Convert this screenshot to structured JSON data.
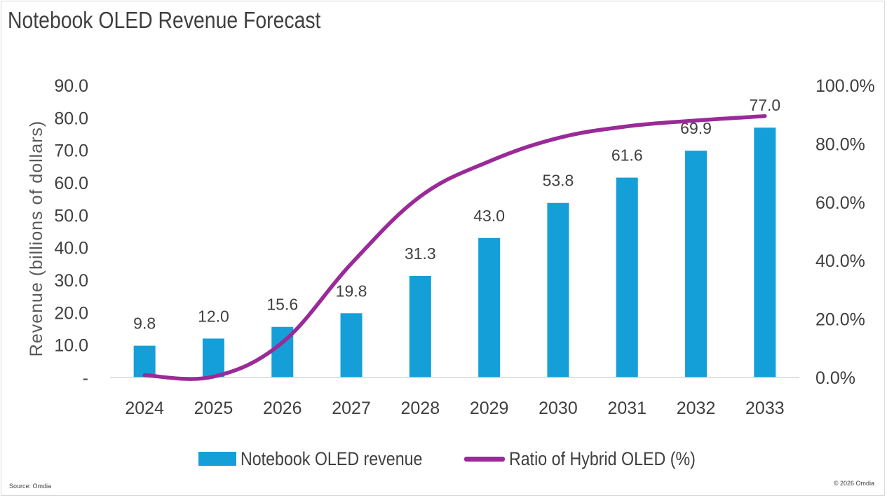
{
  "title": "Notebook OLED Revenue Forecast",
  "source": "Source: Omdia",
  "copyright": "© 2026 Omdia",
  "colors": {
    "bar": "#159fd8",
    "line": "#9a2a98",
    "text": "#404040",
    "axis": "#d9d9d9"
  },
  "chart_data": {
    "type": "bar",
    "title": "Notebook OLED Revenue Forecast",
    "categories": [
      "2024",
      "2025",
      "2026",
      "2027",
      "2028",
      "2029",
      "2030",
      "2031",
      "2032",
      "2033"
    ],
    "series": [
      {
        "name": "Notebook OLED revenue",
        "type": "bar",
        "axis": "left",
        "values": [
          9.8,
          12.0,
          15.6,
          19.8,
          31.3,
          43.0,
          53.8,
          61.6,
          69.9,
          77.0
        ],
        "data_labels": [
          "9.8",
          "12.0",
          "15.6",
          "19.8",
          "31.3",
          "43.0",
          "53.8",
          "61.6",
          "69.9",
          "77.0"
        ]
      },
      {
        "name": "Ratio of Hybrid OLED (%)",
        "type": "line",
        "axis": "right",
        "values": [
          0.8,
          0.3,
          12.0,
          39.0,
          62.0,
          74.0,
          82.0,
          86.0,
          88.0,
          89.5
        ]
      }
    ],
    "ylabel": "Revenue (billions of dollars)",
    "ylim": [
      0,
      90
    ],
    "yticks": [
      "-",
      "10.0",
      "20.0",
      "30.0",
      "40.0",
      "50.0",
      "60.0",
      "70.0",
      "80.0",
      "90.0"
    ],
    "y2lim": [
      0,
      100
    ],
    "y2ticks": [
      "0.0%",
      "20.0%",
      "40.0%",
      "60.0%",
      "80.0%",
      "100.0%"
    ],
    "grid": false,
    "legend_position": "bottom"
  }
}
